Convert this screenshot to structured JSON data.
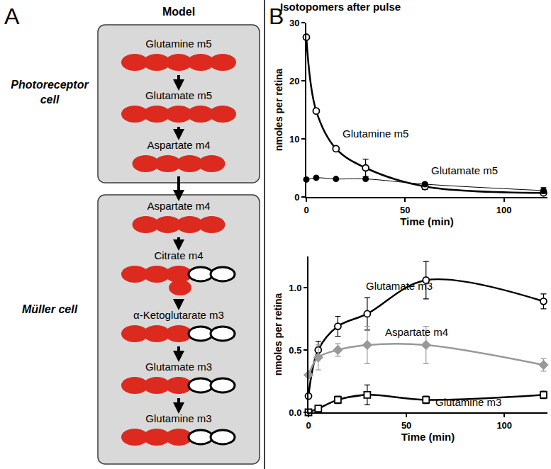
{
  "panel_a": {
    "label": "A",
    "title": "Model",
    "cells": [
      {
        "name_lines": [
          "Photoreceptor",
          "cell"
        ],
        "nodes": [
          {
            "label": "Glutamine m5",
            "labeled": 5,
            "unlabeled": 0
          },
          {
            "label": "Glutamate m5",
            "labeled": 5,
            "unlabeled": 0
          },
          {
            "label": "Aspartate m4",
            "labeled": 4,
            "unlabeled": 0
          }
        ]
      },
      {
        "name_lines": [
          "Müller cell"
        ],
        "nodes": [
          {
            "label": "Aspartate m4",
            "labeled": 4,
            "unlabeled": 0
          },
          {
            "label": "Citrate m4",
            "labeled": 4,
            "unlabeled": 2
          },
          {
            "label": "α-Ketoglutarate m3",
            "labeled": 3,
            "unlabeled": 2
          },
          {
            "label": "Glutamate m3",
            "labeled": 3,
            "unlabeled": 2
          },
          {
            "label": "Glutamine m3",
            "labeled": 3,
            "unlabeled": 2
          }
        ]
      }
    ]
  },
  "panel_b": {
    "label": "B"
  },
  "chart_data": [
    {
      "type": "line",
      "title": "Isotopomers after pulse",
      "x_label": "Time (min)",
      "y_label": "nmoles per retina",
      "x": [
        0,
        5,
        15,
        30,
        60,
        120
      ],
      "series": [
        {
          "name": "Glutamine m5",
          "color": "#000000",
          "marker": "circle-open",
          "line_style": "solid",
          "values": [
            27.5,
            14.8,
            8.3,
            5.0,
            1.8,
            0.7
          ],
          "error": [
            null,
            null,
            null,
            1.5,
            0.5,
            0.3
          ]
        },
        {
          "name": "Glutamate m5",
          "color": "#000000",
          "marker": "circle",
          "line_style": "solid",
          "values": [
            3.0,
            3.3,
            3.1,
            3.1,
            2.2,
            1.1
          ],
          "error": [
            null,
            null,
            null,
            null,
            0.3,
            0.5
          ]
        }
      ],
      "xlim": [
        0,
        122
      ],
      "ylim": [
        0,
        30
      ],
      "xticks": [
        0,
        50,
        100
      ],
      "yticks": [
        0,
        10,
        20,
        30
      ],
      "grid": false
    },
    {
      "type": "line",
      "x_label": "Time (min)",
      "y_label": "nmoles per retina",
      "x": [
        0,
        5,
        15,
        30,
        60,
        120
      ],
      "series": [
        {
          "name": "Glutamate m3",
          "color": "#000000",
          "marker": "circle-open",
          "line_style": "solid",
          "values": [
            0.13,
            0.5,
            0.69,
            0.79,
            1.06,
            0.89
          ],
          "error": [
            null,
            0.07,
            0.08,
            0.13,
            0.15,
            0.06
          ]
        },
        {
          "name": "Aspartate m4",
          "color": "#999999",
          "marker": "diamond",
          "line_style": "solid",
          "values": [
            0.3,
            0.44,
            0.5,
            0.54,
            0.54,
            0.38
          ],
          "error": [
            null,
            0.1,
            0.05,
            0.15,
            0.15,
            0.05
          ]
        },
        {
          "name": "Glutamine m3",
          "color": "#000000",
          "marker": "square-open",
          "line_style": "solid",
          "values": [
            0.0,
            0.03,
            0.1,
            0.14,
            0.1,
            0.14
          ],
          "error": [
            null,
            null,
            0.03,
            0.08,
            0.03,
            0.03
          ]
        }
      ],
      "xlim": [
        0,
        122
      ],
      "ylim": [
        0,
        1.25
      ],
      "xticks": [
        0,
        50,
        100
      ],
      "yticks": [
        {
          "value": 0,
          "label": "0.0"
        },
        {
          "value": 0.5,
          "label": "0.5"
        },
        {
          "value": 1,
          "label": "1.0"
        }
      ],
      "grid": false
    }
  ]
}
